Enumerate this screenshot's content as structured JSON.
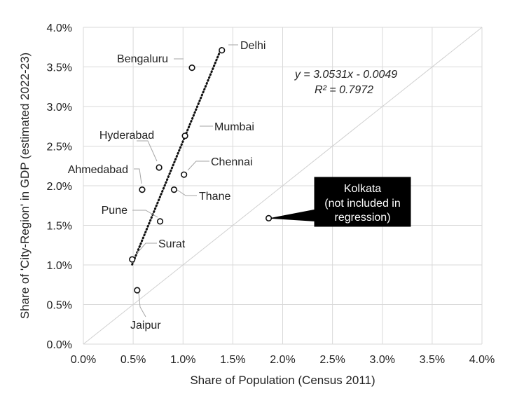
{
  "chart_data": {
    "type": "scatter",
    "xlabel": "Share of Population (Census 2011)",
    "ylabel": "Share of 'City-Region' in GDP (estimated 2022-23)",
    "xlim": [
      0,
      0.04
    ],
    "ylim": [
      0,
      0.04
    ],
    "x_ticks": [
      "0.0%",
      "0.5%",
      "1.0%",
      "1.5%",
      "2.0%",
      "2.5%",
      "3.0%",
      "3.5%",
      "4.0%"
    ],
    "y_ticks": [
      "0.0%",
      "0.5%",
      "1.0%",
      "1.5%",
      "2.0%",
      "2.5%",
      "3.0%",
      "3.5%",
      "4.0%"
    ],
    "grid": true,
    "reference_line": "y = x",
    "points": [
      {
        "label": "Delhi",
        "x": 0.0139,
        "y": 0.0371
      },
      {
        "label": "Bengaluru",
        "x": 0.0109,
        "y": 0.0349
      },
      {
        "label": "Mumbai",
        "x": 0.0102,
        "y": 0.0263
      },
      {
        "label": "Hyderabad",
        "x": 0.0076,
        "y": 0.0223
      },
      {
        "label": "Chennai",
        "x": 0.0101,
        "y": 0.0214
      },
      {
        "label": "Ahmedabad",
        "x": 0.0059,
        "y": 0.0195
      },
      {
        "label": "Thane",
        "x": 0.0091,
        "y": 0.0195
      },
      {
        "label": "Pune",
        "x": 0.0077,
        "y": 0.0155
      },
      {
        "label": "Surat",
        "x": 0.0049,
        "y": 0.0107
      },
      {
        "label": "Jaipur",
        "x": 0.0054,
        "y": 0.0068
      }
    ],
    "excluded_point": {
      "label": "Kolkata",
      "note": "(not included in regression)",
      "x": 0.0186,
      "y": 0.0159
    },
    "trendline": {
      "equation": "y = 3.0531x - 0.0049",
      "r_squared": "R² = 0.7972",
      "slope": 3.0531,
      "intercept": -0.0049,
      "x_range": [
        0.0049,
        0.0139
      ]
    }
  }
}
